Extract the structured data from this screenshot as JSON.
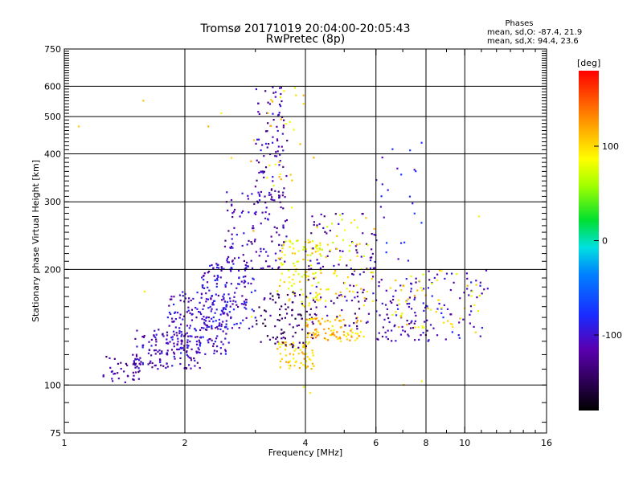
{
  "chart_data": {
    "type": "scatter",
    "title": "Tromsø 20171019 20:04:00-20:05:43",
    "subtitle": "RwPretec (8p)",
    "xlabel": "Frequency [MHz]",
    "ylabel": "Stationary phase Virtual Height [km]",
    "x_scale": "log",
    "y_scale": "log",
    "xlim": [
      1,
      16
    ],
    "ylim": [
      75,
      750
    ],
    "xticks": [
      1,
      2,
      4,
      6,
      8,
      10,
      16
    ],
    "yticks": [
      75,
      100,
      200,
      300,
      400,
      500,
      600,
      750
    ],
    "grid": true,
    "stats": {
      "header": "Phases",
      "line_o": "mean, sd,O: -87.4, 21.9",
      "line_x": "mean, sd,X:  94.4, 23.6"
    },
    "colorbar": {
      "label": "[deg]",
      "range": [
        -180,
        180
      ],
      "ticks": [
        -100,
        0,
        100
      ],
      "placement": "right"
    },
    "color_key": "phase_deg",
    "clusters": [
      {
        "x_range": [
          1.25,
          1.55
        ],
        "y_range": [
          100,
          120
        ],
        "phase_deg": -120,
        "n": 40
      },
      {
        "x_range": [
          1.5,
          2.2
        ],
        "y_range": [
          110,
          140
        ],
        "phase_deg": -110,
        "n": 140
      },
      {
        "x_range": [
          1.8,
          2.6
        ],
        "y_range": [
          120,
          175
        ],
        "phase_deg": -105,
        "n": 170
      },
      {
        "x_range": [
          2.2,
          3.0
        ],
        "y_range": [
          140,
          210
        ],
        "phase_deg": -100,
        "n": 150
      },
      {
        "x_range": [
          2.5,
          3.6
        ],
        "y_range": [
          200,
          320
        ],
        "phase_deg": -110,
        "n": 120
      },
      {
        "x_range": [
          3.0,
          3.6
        ],
        "y_range": [
          300,
          600
        ],
        "phase_deg": -115,
        "n": 90
      },
      {
        "x_range": [
          3.2,
          4.0
        ],
        "y_range": [
          330,
          600
        ],
        "phase_deg": 95,
        "n": 25
      },
      {
        "x_range": [
          3.4,
          4.2
        ],
        "y_range": [
          110,
          130
        ],
        "phase_deg": 100,
        "n": 70
      },
      {
        "x_range": [
          3.4,
          4.4
        ],
        "y_range": [
          160,
          240
        ],
        "phase_deg": 90,
        "n": 110
      },
      {
        "x_range": [
          3.0,
          4.2
        ],
        "y_range": [
          125,
          175
        ],
        "phase_deg": -140,
        "n": 90
      },
      {
        "x_range": [
          4.0,
          5.6
        ],
        "y_range": [
          130,
          150
        ],
        "phase_deg": 110,
        "n": 90
      },
      {
        "x_range": [
          4.0,
          6.0
        ],
        "y_range": [
          140,
          280
        ],
        "phase_deg": -120,
        "n": 110
      },
      {
        "x_range": [
          4.2,
          6.0
        ],
        "y_range": [
          160,
          280
        ],
        "phase_deg": 90,
        "n": 60
      },
      {
        "x_range": [
          6.0,
          8.0
        ],
        "y_range": [
          130,
          190
        ],
        "phase_deg": -110,
        "n": 80
      },
      {
        "x_range": [
          6.5,
          8.0
        ],
        "y_range": [
          140,
          200
        ],
        "phase_deg": 95,
        "n": 30
      },
      {
        "x_range": [
          6.0,
          7.8
        ],
        "y_range": [
          200,
          450
        ],
        "phase_deg": -90,
        "n": 25
      },
      {
        "x_range": [
          8.0,
          11.5
        ],
        "y_range": [
          130,
          200
        ],
        "phase_deg": -100,
        "n": 60
      },
      {
        "x_range": [
          8.0,
          11.0
        ],
        "y_range": [
          140,
          200
        ],
        "phase_deg": 95,
        "n": 25
      },
      {
        "x_range": [
          1.0,
          12.0
        ],
        "y_range": [
          85,
          620
        ],
        "phase_deg": 100,
        "n": 20
      }
    ]
  }
}
